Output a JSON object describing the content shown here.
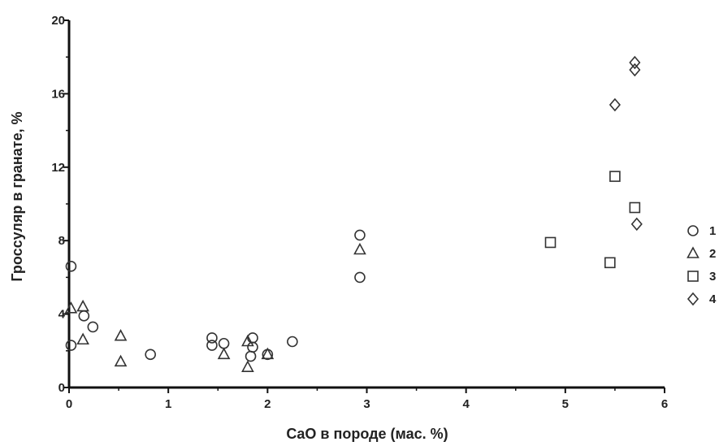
{
  "chart_data": {
    "type": "scatter",
    "xlabel": "CaO в породе (мас. %)",
    "ylabel": "Гроссуляр в гранате, %",
    "xlim": [
      0,
      6
    ],
    "ylim": [
      0,
      20
    ],
    "x_ticks": [
      "0",
      "1",
      "2",
      "3",
      "4",
      "5",
      "6"
    ],
    "y_ticks": [
      "0",
      "4",
      "8",
      "12",
      "16",
      "20"
    ],
    "legend_position": "right",
    "series": [
      {
        "name": "1",
        "marker": "circle",
        "points": [
          [
            0.02,
            6.6
          ],
          [
            0.02,
            2.3
          ],
          [
            0.15,
            3.9
          ],
          [
            0.24,
            3.3
          ],
          [
            0.82,
            1.8
          ],
          [
            1.44,
            2.7
          ],
          [
            1.44,
            2.3
          ],
          [
            1.56,
            2.4
          ],
          [
            1.85,
            2.7
          ],
          [
            1.85,
            2.2
          ],
          [
            1.83,
            1.7
          ],
          [
            2.0,
            1.8
          ],
          [
            2.25,
            2.5
          ],
          [
            2.93,
            8.3
          ],
          [
            2.93,
            6.0
          ]
        ]
      },
      {
        "name": "2",
        "marker": "triangle",
        "points": [
          [
            0.02,
            4.3
          ],
          [
            0.14,
            4.4
          ],
          [
            0.14,
            2.6
          ],
          [
            0.52,
            2.8
          ],
          [
            0.52,
            1.4
          ],
          [
            1.56,
            1.8
          ],
          [
            1.8,
            2.5
          ],
          [
            1.8,
            1.1
          ],
          [
            2.0,
            1.8
          ],
          [
            2.93,
            7.5
          ]
        ]
      },
      {
        "name": "3",
        "marker": "square",
        "points": [
          [
            4.85,
            7.9
          ],
          [
            5.45,
            6.8
          ],
          [
            5.5,
            11.5
          ],
          [
            5.7,
            9.8
          ]
        ]
      },
      {
        "name": "4",
        "marker": "diamond",
        "points": [
          [
            5.5,
            15.4
          ],
          [
            5.7,
            17.7
          ],
          [
            5.7,
            17.3
          ],
          [
            5.72,
            8.9
          ]
        ]
      }
    ]
  }
}
